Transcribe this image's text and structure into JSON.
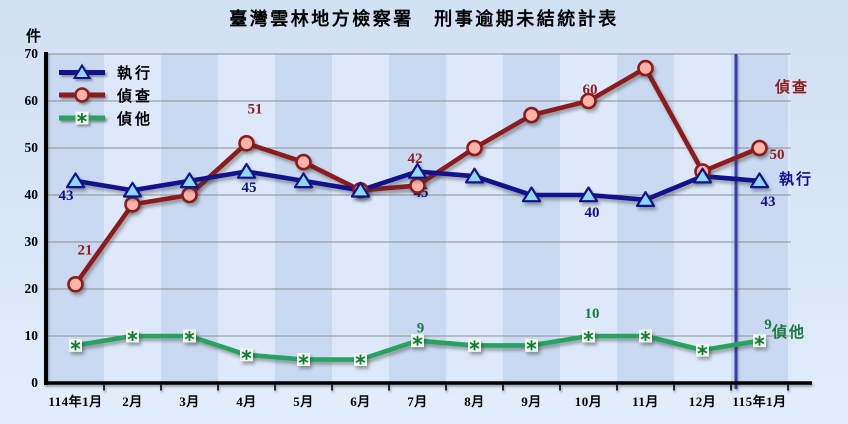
{
  "chart_data": {
    "type": "line",
    "title": "臺灣雲林地方檢察署　刑事逾期未結統計表",
    "ylabel": "件",
    "ylim": [
      0,
      70
    ],
    "yticks": [
      0,
      10,
      20,
      30,
      40,
      50,
      60,
      70
    ],
    "grid": "horizontal",
    "legend_position": "top-left-inside",
    "categories": [
      "114年1月",
      "2月",
      "3月",
      "4月",
      "5月",
      "6月",
      "7月",
      "8月",
      "9月",
      "10月",
      "11月",
      "12月",
      "115年1月"
    ],
    "series": [
      {
        "name": "執行",
        "marker": "triangle",
        "color": "#12128e",
        "marker_fill": "#8fd9f4",
        "label_color": "#10108c",
        "values": [
          43,
          41,
          43,
          45,
          43,
          41,
          45,
          44,
          40,
          40,
          39,
          44,
          43
        ]
      },
      {
        "name": "偵查",
        "marker": "circle",
        "color": "#8e1b1b",
        "marker_fill": "#ffb4aa",
        "label_color": "#8f1c1c",
        "values": [
          21,
          38,
          40,
          51,
          47,
          41,
          42,
          50,
          57,
          60,
          67,
          45,
          50
        ]
      },
      {
        "name": "偵他",
        "marker": "asterisk",
        "color": "#27a35f",
        "marker_fill": "#eef9ea",
        "label_color": "#1b7a40",
        "values": [
          8,
          10,
          10,
          6,
          5,
          5,
          9,
          8,
          8,
          10,
          10,
          7,
          9
        ]
      }
    ],
    "point_labels": [
      {
        "series": "執行",
        "category": "114年1月",
        "value": 43
      },
      {
        "series": "偵查",
        "category": "114年1月",
        "value": 21
      },
      {
        "series": "偵查",
        "category": "4月",
        "value": 51
      },
      {
        "series": "執行",
        "category": "4月",
        "value": 45
      },
      {
        "series": "偵查",
        "category": "7月",
        "value": 42
      },
      {
        "series": "執行",
        "category": "7月",
        "value": 45
      },
      {
        "series": "偵他",
        "category": "7月",
        "value": 9
      },
      {
        "series": "偵查",
        "category": "10月",
        "value": 60
      },
      {
        "series": "執行",
        "category": "10月",
        "value": 40
      },
      {
        "series": "偵他",
        "category": "10月",
        "value": 10
      },
      {
        "series": "偵查",
        "category": "115年1月",
        "value": 50
      },
      {
        "series": "執行",
        "category": "115年1月",
        "value": 43
      },
      {
        "series": "偵他",
        "category": "115年1月",
        "value": 9
      }
    ],
    "separator_after_category": "12月"
  }
}
